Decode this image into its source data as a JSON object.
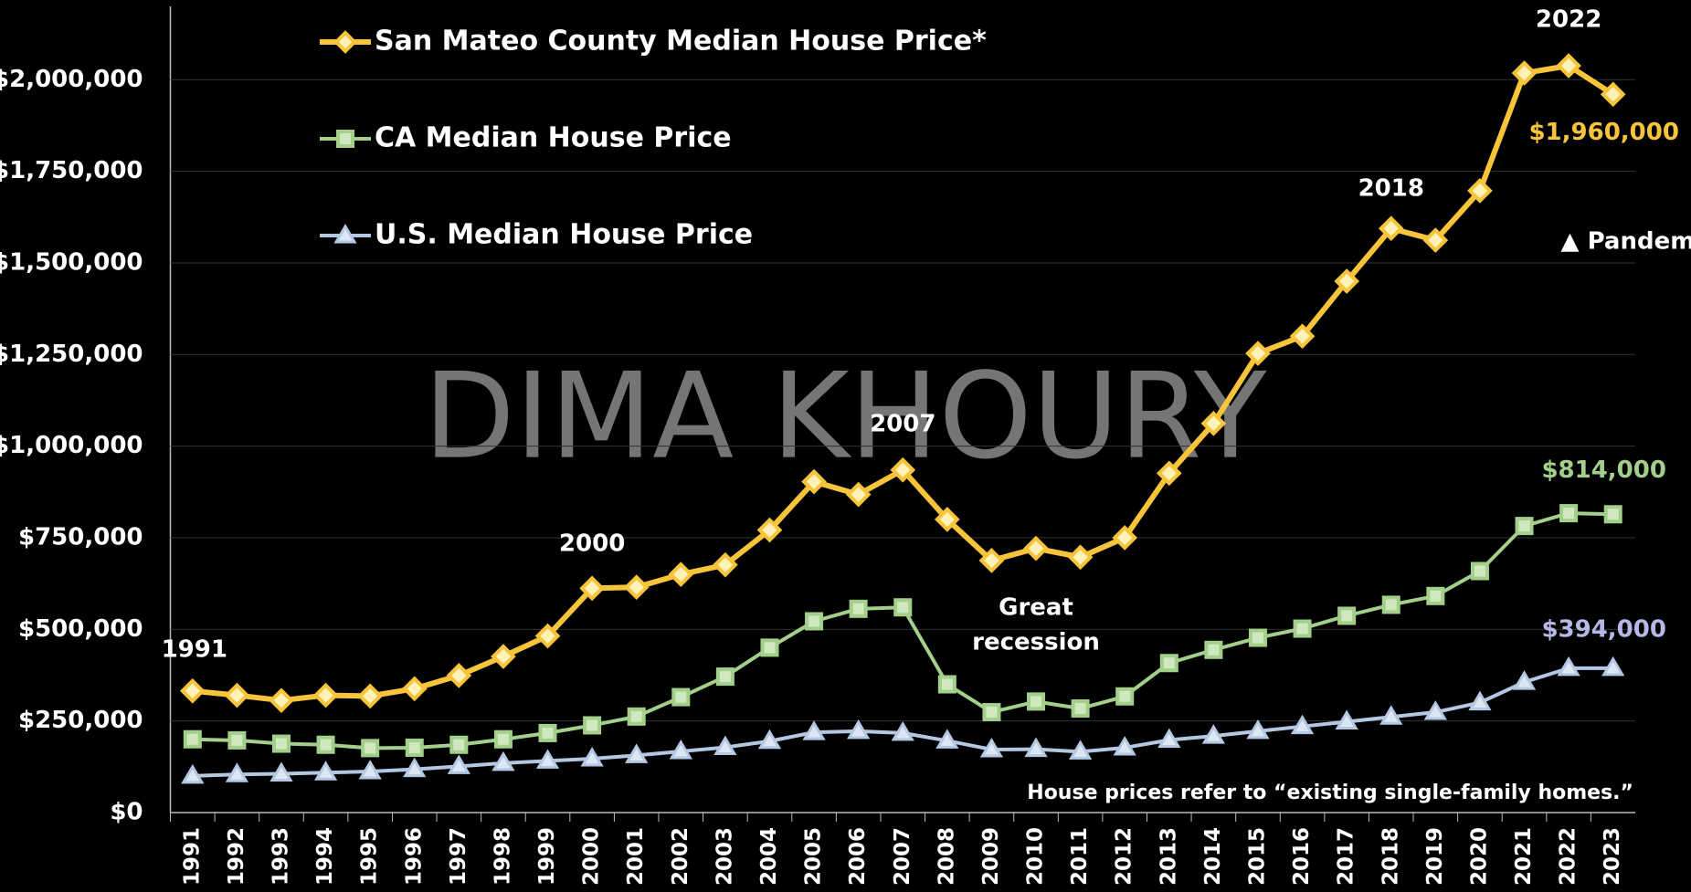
{
  "chart_data": {
    "type": "line",
    "watermark": "DIMA KHOURY",
    "categories": [
      "1991",
      "1992",
      "1993",
      "1994",
      "1995",
      "1996",
      "1997",
      "1998",
      "1999",
      "2000",
      "2001",
      "2002",
      "2003",
      "2004",
      "2005",
      "2006",
      "2007",
      "2008",
      "2009",
      "2010",
      "2011",
      "2012",
      "2013",
      "2014",
      "2015",
      "2016",
      "2017",
      "2018",
      "2019",
      "2020",
      "2021",
      "2022",
      "2023"
    ],
    "series": [
      {
        "name": "San Mateo County Median House Price*",
        "color": "#f7c43a",
        "marker": "diamond",
        "values": [
          332000,
          320000,
          306000,
          320000,
          318000,
          338000,
          374000,
          426000,
          482000,
          612000,
          615000,
          650000,
          676000,
          771000,
          903000,
          868000,
          935000,
          800000,
          688000,
          721000,
          697000,
          750000,
          926000,
          1062000,
          1253000,
          1300000,
          1450000,
          1594000,
          1562000,
          1697000,
          2018000,
          2038000,
          1960000
        ],
        "value_labels": [
          null,
          null,
          null,
          null,
          null,
          null,
          null,
          null,
          null,
          null,
          null,
          null,
          null,
          null,
          null,
          null,
          null,
          null,
          null,
          null,
          null,
          null,
          null,
          null,
          null,
          null,
          null,
          null,
          null,
          null,
          null,
          null,
          "$1,960,000"
        ]
      },
      {
        "name": "CA Median House Price",
        "color": "#a2d08a",
        "marker": "square",
        "values": [
          200000,
          197000,
          188000,
          185000,
          176000,
          177000,
          185000,
          200000,
          217000,
          238000,
          262000,
          315000,
          371000,
          450000,
          522000,
          556000,
          560000,
          350000,
          274000,
          303000,
          284000,
          317000,
          408000,
          444000,
          477000,
          502000,
          537000,
          567000,
          591000,
          659000,
          782000,
          817000,
          814000
        ],
        "value_labels": [
          null,
          null,
          null,
          null,
          null,
          null,
          null,
          null,
          null,
          null,
          null,
          null,
          null,
          null,
          null,
          null,
          null,
          null,
          null,
          null,
          null,
          null,
          null,
          null,
          null,
          null,
          null,
          null,
          null,
          null,
          null,
          null,
          "$814,000"
        ]
      },
      {
        "name": "U.S. Median House Price",
        "color": "#b4c8e4",
        "marker": "triangle",
        "values": [
          100000,
          104000,
          106000,
          109000,
          112000,
          118000,
          126000,
          135000,
          141000,
          147000,
          156000,
          167000,
          178000,
          195000,
          219000,
          222000,
          217000,
          196000,
          172000,
          173000,
          166000,
          177000,
          198000,
          209000,
          222000,
          235000,
          248000,
          261000,
          274000,
          300000,
          356000,
          394000,
          394000
        ],
        "value_labels": [
          null,
          null,
          null,
          null,
          null,
          null,
          null,
          null,
          null,
          null,
          null,
          null,
          null,
          null,
          null,
          null,
          null,
          null,
          null,
          null,
          null,
          null,
          null,
          null,
          null,
          null,
          null,
          null,
          null,
          null,
          null,
          null,
          "$394,000"
        ]
      }
    ],
    "ylim": [
      0,
      2200000
    ],
    "yticks": [
      {
        "value": 0,
        "label": "$0"
      },
      {
        "value": 250000,
        "label": "$250,000"
      },
      {
        "value": 500000,
        "label": "$500,000"
      },
      {
        "value": 750000,
        "label": "$750,000"
      },
      {
        "value": 1000000,
        "label": "$1,000,000"
      },
      {
        "value": 1250000,
        "label": "$1,250,000"
      },
      {
        "value": 1500000,
        "label": "$1,500,000"
      },
      {
        "value": 1750000,
        "label": "$1,750,000"
      },
      {
        "value": 2000000,
        "label": "$2,000,000"
      }
    ],
    "grid": true,
    "annotations": [
      {
        "text": "1991",
        "category": 0
      },
      {
        "text": "2000",
        "category": 9
      },
      {
        "text": "2007",
        "category": 16
      },
      {
        "text": "Great",
        "category": 19
      },
      {
        "text": "recession",
        "category": 19
      },
      {
        "text": "2018",
        "category": 27
      },
      {
        "text": "2022",
        "category": 31
      },
      {
        "text": "▲ Pandemic hits",
        "category": 30
      }
    ],
    "note": "House prices refer to “existing single-family homes.”"
  }
}
